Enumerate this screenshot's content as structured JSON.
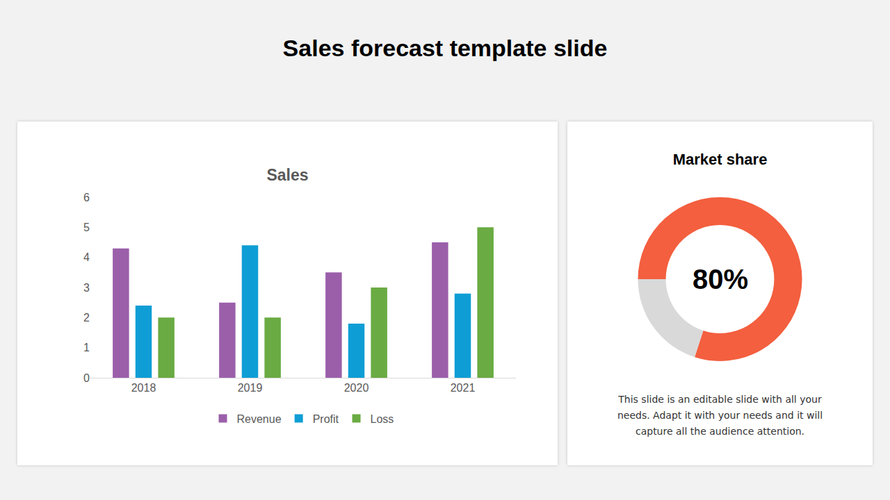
{
  "slide": {
    "title": "Sales forecast template slide",
    "description": "This slide is an editable slide with all your needs. Adapt it with your needs and it will capture all the audience attention."
  },
  "chart_data": [
    {
      "type": "bar",
      "title": "Sales",
      "categories": [
        "2018",
        "2019",
        "2020",
        "2021"
      ],
      "series": [
        {
          "name": "Revenue",
          "color": "#9B5FAA",
          "values": [
            4.3,
            2.5,
            3.5,
            4.5
          ]
        },
        {
          "name": "Profit",
          "color": "#0E9ED5",
          "values": [
            2.4,
            4.4,
            1.8,
            2.8
          ]
        },
        {
          "name": "Loss",
          "color": "#6AAB43",
          "values": [
            2,
            2,
            3,
            5
          ]
        }
      ],
      "ylim": [
        0,
        6
      ],
      "yticks": [
        0,
        1,
        2,
        3,
        4,
        5,
        6
      ],
      "grid": false,
      "legend": "bottom"
    },
    {
      "type": "donut",
      "title": "Market share",
      "values": [
        80,
        20
      ],
      "colors": [
        "#F35F3F",
        "#D9D9D9"
      ],
      "annotations": [
        "80%"
      ]
    }
  ]
}
